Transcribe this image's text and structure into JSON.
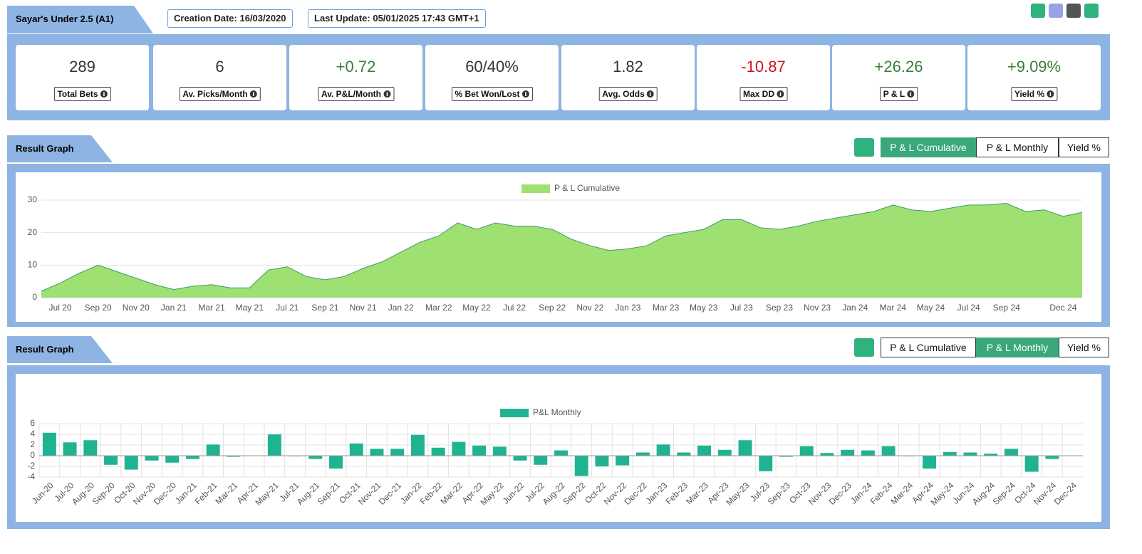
{
  "header": {
    "title": "Sayar's Under 2.5 (A1)",
    "creation": "Creation Date: 16/03/2020",
    "update": "Last Update: 05/01/2025 17:43 GMT+1"
  },
  "stats": [
    {
      "value": "289",
      "label": "Total Bets"
    },
    {
      "value": "6",
      "label": "Av. Picks/Month"
    },
    {
      "value": "+0.72",
      "label": "Av. P&L/Month"
    },
    {
      "value": "60/40%",
      "label": "% Bet Won/Lost"
    },
    {
      "value": "1.82",
      "label": "Avg. Odds"
    },
    {
      "value": "-10.87",
      "label": "Max DD"
    },
    {
      "value": "+26.26",
      "label": "P & L"
    },
    {
      "value": "+9.09%",
      "label": "Yield %"
    }
  ],
  "sections": [
    {
      "title": "Result Graph",
      "buttons": [
        "P & L Cumulative",
        "P & L Monthly",
        "Yield %"
      ]
    },
    {
      "title": "Result Graph",
      "buttons": [
        "P & L Cumulative",
        "P & L Monthly",
        "Yield %"
      ]
    }
  ],
  "chart_data": [
    {
      "type": "area",
      "categories": [
        null,
        "Jul 20",
        null,
        "Sep 20",
        null,
        "Nov 20",
        null,
        "Jan 21",
        null,
        "Mar 21",
        null,
        "May 21",
        null,
        "Jul 21",
        null,
        "Sep 21",
        null,
        "Nov 21",
        null,
        "Jan 22",
        null,
        "Mar 22",
        null,
        "May 22",
        null,
        "Jul 22",
        null,
        "Sep 22",
        null,
        "Nov 22",
        null,
        "Jan 23",
        null,
        "Mar 23",
        null,
        "May 23",
        null,
        "Jul 23",
        null,
        "Sep 23",
        null,
        "Nov 23",
        null,
        "Jan 24",
        null,
        "Mar 24",
        null,
        "May 24",
        null,
        "Jul 24",
        null,
        "Sep 24",
        null,
        null,
        "Dec 24",
        null
      ],
      "series": [
        {
          "name": "P & L Cumulative",
          "color": "#9ee071",
          "line_color": "#3f9a6a",
          "values": [
            2,
            4.5,
            7.5,
            10,
            8,
            6,
            4,
            2.5,
            3.5,
            4,
            3,
            3,
            8.5,
            9.5,
            6.5,
            5.5,
            6.5,
            9,
            11,
            14,
            17,
            19,
            23,
            21,
            23,
            22,
            22,
            21,
            18,
            16,
            14.5,
            15,
            16,
            19,
            20,
            21,
            24,
            24,
            21.5,
            21,
            22,
            23.5,
            24.5,
            25.5,
            26.5,
            28.5,
            27,
            26.5,
            27.5,
            28.5,
            28.5,
            29,
            26.5,
            27,
            25,
            26.26
          ]
        }
      ],
      "ylim": [
        0,
        30
      ],
      "yticks": [
        0,
        10,
        20,
        30
      ],
      "grid": true
    },
    {
      "type": "bar",
      "categories": [
        "Jun-20",
        "Jul-20",
        "Aug-20",
        "Sep-20",
        "Oct-20",
        "Nov-20",
        "Dec-20",
        "Jan-21",
        "Feb-21",
        "Mar-21",
        "Apr-21",
        "May-21",
        "Jul-21",
        "Aug-21",
        "Sep-21",
        "Oct-21",
        "Nov-21",
        "Dec-21",
        "Jan-22",
        "Feb-22",
        "Mar-22",
        "Apr-22",
        "May-22",
        "Jun-22",
        "Jul-22",
        "Aug-22",
        "Sep-22",
        "Oct-22",
        "Nov-22",
        "Dec-22",
        "Jan-23",
        "Feb-23",
        "Mar-23",
        "Apr-23",
        "May-23",
        "Jul-23",
        "Sep-23",
        "Oct-23",
        "Nov-23",
        "Dec-23",
        "Jan-24",
        "Feb-24",
        "Mar-24",
        "Apr-24",
        "May-24",
        "Jun-24",
        "Aug-24",
        "Sep-24",
        "Oct-24",
        "Nov-24",
        "Dec-24"
      ],
      "series": [
        {
          "name": "P&L Monthly",
          "color": "#1fb392",
          "values": [
            4.3,
            2.5,
            2.9,
            -1.7,
            -2.6,
            -0.9,
            -1.3,
            -0.6,
            2.1,
            -0.2,
            0,
            4.0,
            -0.1,
            -0.6,
            -2.4,
            2.3,
            1.3,
            1.3,
            3.9,
            1.5,
            2.6,
            1.9,
            1.7,
            -0.9,
            -1.7,
            1.0,
            -3.8,
            -2.0,
            -1.8,
            0.6,
            2.1,
            0.6,
            1.9,
            1.1,
            2.9,
            -2.9,
            -0.2,
            1.8,
            0.5,
            1.1,
            1.0,
            1.8,
            -0.1,
            -2.4,
            0.7,
            0.6,
            0.4,
            1.3,
            -3.0,
            -0.6,
            0
          ]
        }
      ],
      "ylim": [
        -4,
        6
      ],
      "yticks": [
        -4,
        -2,
        0,
        2,
        4,
        6
      ],
      "grid": true
    }
  ]
}
